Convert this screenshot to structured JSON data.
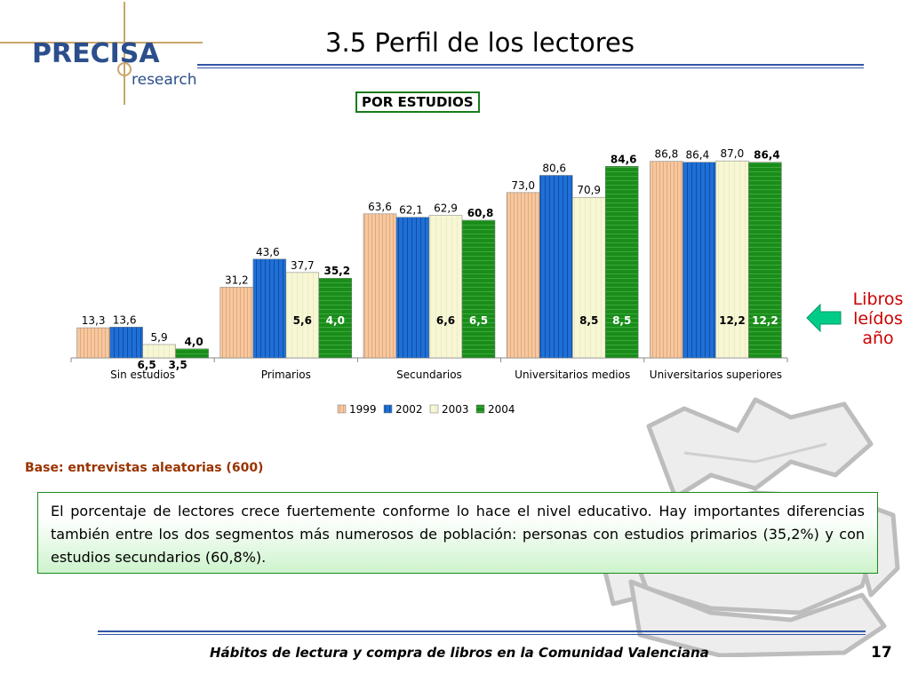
{
  "header": {
    "logo_text": "PRECISA",
    "logo_sub": "research",
    "title": "3.5 Perfil de los lectores"
  },
  "chart_data": {
    "type": "bar",
    "title": "POR ESTUDIOS",
    "categories": [
      "Sin estudios",
      "Primarios",
      "Secundarios",
      "Universitarios medios",
      "Universitarios superiores"
    ],
    "series": [
      {
        "name": "1999",
        "values": [
          13.3,
          31.2,
          63.6,
          73.0,
          86.8
        ],
        "labels": [
          "13,3",
          "31,2",
          "63,6",
          "73,0",
          "86,8"
        ],
        "color": "#f5c8a0"
      },
      {
        "name": "2002",
        "values": [
          13.6,
          43.6,
          62.1,
          80.6,
          86.4
        ],
        "labels": [
          "13,6",
          "43,6",
          "62,1",
          "80,6",
          "86,4"
        ],
        "color": "#1f6fd6"
      },
      {
        "name": "2003",
        "values": [
          5.9,
          37.7,
          62.9,
          70.9,
          87.0
        ],
        "labels": [
          "5,9",
          "37,7",
          "62,9",
          "70,9",
          "87,0"
        ],
        "color": "#f7f7d6"
      },
      {
        "name": "2004",
        "values": [
          4.0,
          35.2,
          60.8,
          84.6,
          86.4
        ],
        "labels": [
          "4,0",
          "35,2",
          "60,8",
          "84,6",
          "86,4"
        ],
        "color": "#1a8c1a"
      }
    ],
    "books_read": {
      "2003": [
        "6,5",
        "5,6",
        "6,6",
        "8,5",
        "12,2"
      ],
      "2004": [
        "3,5",
        "4,0",
        "6,5",
        "8,5",
        "12,2"
      ]
    },
    "ylim": [
      0,
      100
    ],
    "legend": "bottom-center",
    "grid": false
  },
  "side_label": {
    "line1": "Libros",
    "line2": "leídos",
    "line3": "año"
  },
  "base_note": "Base: entrevistas aleatorias (600)",
  "summary": "El porcentaje de lectores crece fuertemente conforme lo hace el nivel educativo.  Hay importantes diferencias también entre los dos segmentos más numerosos de población: personas con estudios primarios (35,2%) y con estudios secundarios (60,8%).",
  "footer": {
    "text": "Hábitos de lectura y compra de libros en la Comunidad Valenciana",
    "page": "17"
  },
  "colors": {
    "accent_blue": "#3355a8",
    "brand_blue": "#2c4f8c",
    "logo_gold": "#c9a76a",
    "base_note": "#993300",
    "side_label": "#cc0000",
    "arrow": "#00cc88"
  }
}
